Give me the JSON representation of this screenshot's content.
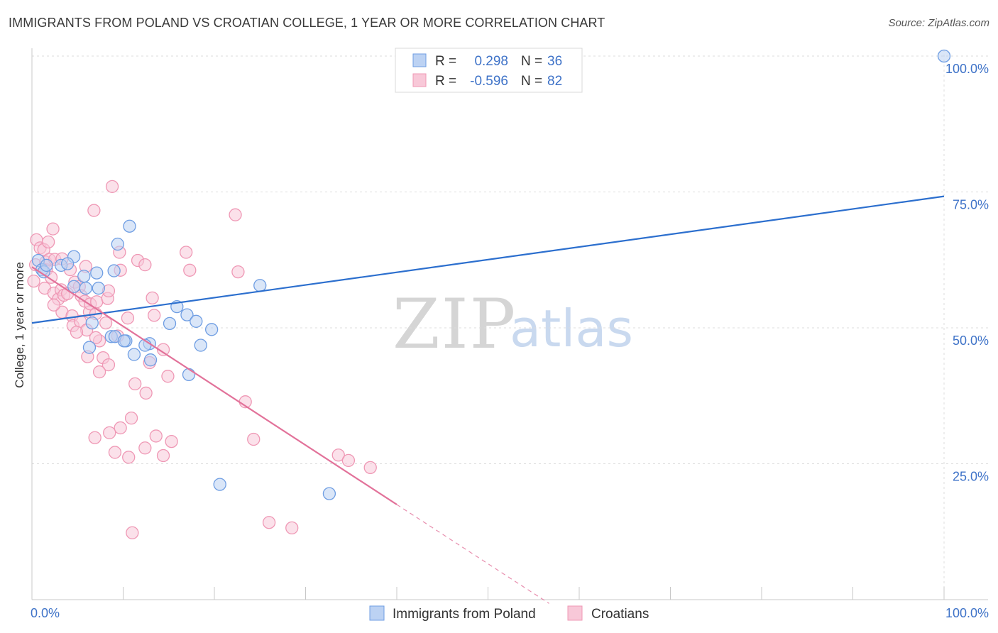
{
  "title": "IMMIGRANTS FROM POLAND VS CROATIAN COLLEGE, 1 YEAR OR MORE CORRELATION CHART",
  "source": "Source: ZipAtlas.com",
  "watermark": {
    "zip": "ZIP",
    "atlas": "atlas"
  },
  "chart_data": {
    "type": "scatter",
    "title": "IMMIGRANTS FROM POLAND VS CROATIAN COLLEGE, 1 YEAR OR MORE CORRELATION CHART",
    "xlabel": "",
    "ylabel": "College, 1 year or more",
    "xlim": [
      0,
      100
    ],
    "ylim": [
      0,
      100
    ],
    "x_tick_labels": [
      "0.0%",
      "100.0%"
    ],
    "y_ticks": [
      25,
      50,
      75,
      100
    ],
    "y_tick_labels": [
      "25.0%",
      "50.0%",
      "75.0%",
      "100.0%"
    ],
    "grid": true,
    "legend_position": "bottom",
    "stats": [
      {
        "r_label": "R =",
        "r": "0.298",
        "n_label": "N =",
        "n": "36"
      },
      {
        "r_label": "R =",
        "r": "-0.596",
        "n_label": "N =",
        "n": "82"
      }
    ],
    "series": [
      {
        "name": "Immigrants from Poland",
        "color": "#6f9ee3",
        "fill": "#bcd2f3",
        "line_color": "#2c6fce",
        "trend": {
          "x": [
            0,
            100
          ],
          "y": [
            50.9,
            74.2
          ]
        },
        "points": [
          [
            0.7,
            62.4
          ],
          [
            1.1,
            60.7
          ],
          [
            1.3,
            60.3
          ],
          [
            1.6,
            61.5
          ],
          [
            3.2,
            61.5
          ],
          [
            4.6,
            63.1
          ],
          [
            3.9,
            61.8
          ],
          [
            5.7,
            59.5
          ],
          [
            4.6,
            57.6
          ],
          [
            7.1,
            60.1
          ],
          [
            5.9,
            57.3
          ],
          [
            9.0,
            60.5
          ],
          [
            7.3,
            57.3
          ],
          [
            9.4,
            65.4
          ],
          [
            10.7,
            68.7
          ],
          [
            10.3,
            47.6
          ],
          [
            6.6,
            50.9
          ],
          [
            8.7,
            48.4
          ],
          [
            9.1,
            48.4
          ],
          [
            10.1,
            47.6
          ],
          [
            12.9,
            47.1
          ],
          [
            11.2,
            45.1
          ],
          [
            12.4,
            46.8
          ],
          [
            6.3,
            46.4
          ],
          [
            13.0,
            44.1
          ],
          [
            15.1,
            50.8
          ],
          [
            15.9,
            53.9
          ],
          [
            17.0,
            52.4
          ],
          [
            18.0,
            51.2
          ],
          [
            19.7,
            49.7
          ],
          [
            18.5,
            46.8
          ],
          [
            17.2,
            41.4
          ],
          [
            25.0,
            57.8
          ],
          [
            20.6,
            21.2
          ],
          [
            32.6,
            19.5
          ],
          [
            100,
            100
          ]
        ]
      },
      {
        "name": "Croatians",
        "color": "#ef98b5",
        "fill": "#f8c8d8",
        "line_color": "#e2729a",
        "trend": {
          "x": [
            0,
            40
          ],
          "y": [
            61.2,
            17.5
          ]
        },
        "trend_dashed": {
          "x": [
            40,
            56.7
          ],
          "y": [
            17.5,
            -0.7
          ]
        },
        "points": [
          [
            0.2,
            58.6
          ],
          [
            0.4,
            61.6
          ],
          [
            0.5,
            66.2
          ],
          [
            0.9,
            64.7
          ],
          [
            1.3,
            64.4
          ],
          [
            1.5,
            62.1
          ],
          [
            1.6,
            60.7
          ],
          [
            1.4,
            57.3
          ],
          [
            1.9,
            62.6
          ],
          [
            2.1,
            59.3
          ],
          [
            2.3,
            68.2
          ],
          [
            2.4,
            56.4
          ],
          [
            2.5,
            62.6
          ],
          [
            2.9,
            55.3
          ],
          [
            3.2,
            57.0
          ],
          [
            3.5,
            56.0
          ],
          [
            3.3,
            52.9
          ],
          [
            3.9,
            56.3
          ],
          [
            4.4,
            52.2
          ],
          [
            4.2,
            60.7
          ],
          [
            4.7,
            58.4
          ],
          [
            5.2,
            57.6
          ],
          [
            5.4,
            55.9
          ],
          [
            4.5,
            50.4
          ],
          [
            5.3,
            51.2
          ],
          [
            5.8,
            54.9
          ],
          [
            6.0,
            49.6
          ],
          [
            5.9,
            61.3
          ],
          [
            6.3,
            52.9
          ],
          [
            6.8,
            71.6
          ],
          [
            6.4,
            54.4
          ],
          [
            7.0,
            52.6
          ],
          [
            7.1,
            54.8
          ],
          [
            7.4,
            47.6
          ],
          [
            7.0,
            48.2
          ],
          [
            7.8,
            44.5
          ],
          [
            8.1,
            50.9
          ],
          [
            8.4,
            43.2
          ],
          [
            7.4,
            41.9
          ],
          [
            8.3,
            55.4
          ],
          [
            8.4,
            56.8
          ],
          [
            8.8,
            76.0
          ],
          [
            9.6,
            63.9
          ],
          [
            9.4,
            48.5
          ],
          [
            10.5,
            51.8
          ],
          [
            10.9,
            33.4
          ],
          [
            9.7,
            31.6
          ],
          [
            11.3,
            39.7
          ],
          [
            11.6,
            62.4
          ],
          [
            12.4,
            61.6
          ],
          [
            12.5,
            38.0
          ],
          [
            12.4,
            27.9
          ],
          [
            12.9,
            43.6
          ],
          [
            13.2,
            55.5
          ],
          [
            13.4,
            52.3
          ],
          [
            13.6,
            30.1
          ],
          [
            14.4,
            46.0
          ],
          [
            14.4,
            26.5
          ],
          [
            14.9,
            41.1
          ],
          [
            15.3,
            29.1
          ],
          [
            16.9,
            63.9
          ],
          [
            17.3,
            60.6
          ],
          [
            22.3,
            70.8
          ],
          [
            22.6,
            60.3
          ],
          [
            23.4,
            36.4
          ],
          [
            24.3,
            29.5
          ],
          [
            26.0,
            14.2
          ],
          [
            28.5,
            13.2
          ],
          [
            33.6,
            26.6
          ],
          [
            34.7,
            25.6
          ],
          [
            37.1,
            24.3
          ],
          [
            11.0,
            12.3
          ],
          [
            10.6,
            26.2
          ],
          [
            9.1,
            27.1
          ],
          [
            8.5,
            30.7
          ],
          [
            6.9,
            29.8
          ],
          [
            3.3,
            62.7
          ],
          [
            2.4,
            54.2
          ],
          [
            4.9,
            49.2
          ],
          [
            6.1,
            44.7
          ],
          [
            1.8,
            65.8
          ],
          [
            9.7,
            60.6
          ]
        ]
      }
    ]
  }
}
